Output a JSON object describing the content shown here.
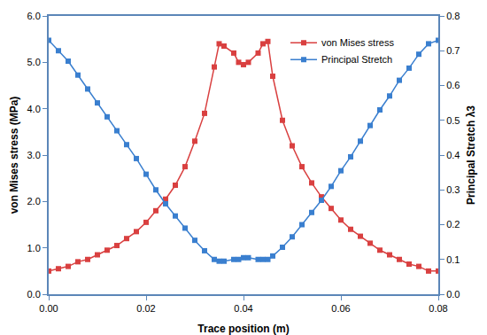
{
  "chart_data": {
    "type": "line",
    "x_label": "Trace position (m)",
    "y_label": "von Mises stress (MPa)",
    "y2_label": "Principal Stretch λ3",
    "x": [
      0,
      0.002,
      0.004,
      0.006,
      0.008,
      0.01,
      0.012,
      0.014,
      0.016,
      0.018,
      0.02,
      0.022,
      0.024,
      0.026,
      0.028,
      0.03,
      0.032,
      0.034,
      0.035,
      0.036,
      0.038,
      0.039,
      0.04,
      0.041,
      0.043,
      0.044,
      0.045,
      0.046,
      0.048,
      0.05,
      0.052,
      0.054,
      0.056,
      0.058,
      0.06,
      0.062,
      0.064,
      0.066,
      0.068,
      0.07,
      0.072,
      0.074,
      0.076,
      0.078,
      0.08
    ],
    "series": [
      {
        "name": "von Mises stress",
        "color": "#d94040",
        "marker": "square",
        "axis": "y",
        "values": [
          0.5,
          0.55,
          0.6,
          0.7,
          0.75,
          0.85,
          0.95,
          1.05,
          1.2,
          1.35,
          1.55,
          1.8,
          2.05,
          2.35,
          2.75,
          3.3,
          3.9,
          4.9,
          5.4,
          5.35,
          5.2,
          5.0,
          4.95,
          5.0,
          5.2,
          5.4,
          5.45,
          4.7,
          3.75,
          3.2,
          2.75,
          2.4,
          2.1,
          1.85,
          1.6,
          1.4,
          1.25,
          1.1,
          0.95,
          0.85,
          0.75,
          0.65,
          0.6,
          0.5,
          0.5
        ]
      },
      {
        "name": "Principal Stretch",
        "color": "#3a7fcf",
        "marker": "square",
        "axis": "y2",
        "values": [
          0.73,
          0.7,
          0.67,
          0.63,
          0.59,
          0.55,
          0.51,
          0.47,
          0.43,
          0.39,
          0.345,
          0.3,
          0.26,
          0.225,
          0.19,
          0.155,
          0.125,
          0.1,
          0.095,
          0.095,
          0.1,
          0.1,
          0.105,
          0.105,
          0.1,
          0.1,
          0.1,
          0.11,
          0.135,
          0.165,
          0.2,
          0.235,
          0.27,
          0.31,
          0.355,
          0.395,
          0.44,
          0.485,
          0.53,
          0.57,
          0.615,
          0.65,
          0.69,
          0.72,
          0.73
        ]
      }
    ],
    "xlim": [
      0,
      0.08
    ],
    "xticks": [
      {
        "value": 0,
        "label": "0.00"
      },
      {
        "value": 0.02,
        "label": "0.02"
      },
      {
        "value": 0.04,
        "label": "0.04"
      },
      {
        "value": 0.06,
        "label": "0.06"
      },
      {
        "value": 0.08,
        "label": "0.08"
      }
    ],
    "ylim": [
      0,
      6
    ],
    "yticks": [
      {
        "value": 0,
        "label": "0.0"
      },
      {
        "value": 1,
        "label": "1.0"
      },
      {
        "value": 2,
        "label": "2.0"
      },
      {
        "value": 3,
        "label": "3.0"
      },
      {
        "value": 4,
        "label": "4.0"
      },
      {
        "value": 5,
        "label": "5.0"
      },
      {
        "value": 6,
        "label": "6.0"
      }
    ],
    "y2lim": [
      0,
      0.8
    ],
    "y2ticks": [
      {
        "value": 0,
        "label": "0.0"
      },
      {
        "value": 0.1,
        "label": "0.1"
      },
      {
        "value": 0.2,
        "label": "0.2"
      },
      {
        "value": 0.3,
        "label": "0.3"
      },
      {
        "value": 0.4,
        "label": "0.4"
      },
      {
        "value": 0.5,
        "label": "0.5"
      },
      {
        "value": 0.6,
        "label": "0.6"
      },
      {
        "value": 0.7,
        "label": "0.7"
      },
      {
        "value": 0.8,
        "label": "0.8"
      }
    ],
    "grid": false,
    "legend": "upper right"
  }
}
